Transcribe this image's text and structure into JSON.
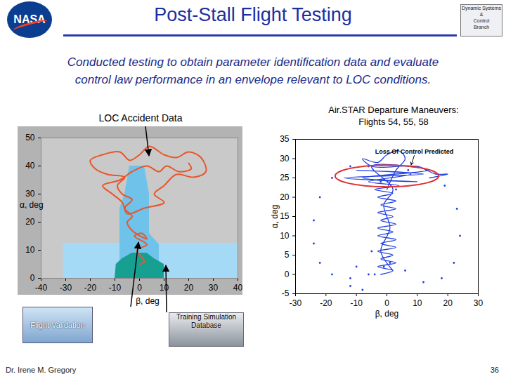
{
  "slide": {
    "title": "Post-Stall Flight Testing",
    "subtitle": "Conducted testing to obtain parameter identification data and evaluate\ncontrol law performance  in an envelope relevant to LOC conditions.",
    "logo_left": "NASA",
    "logo_right": [
      "Dynamic Systems",
      "&",
      "Control",
      "Branch"
    ],
    "images": [
      "Flight Validation",
      "Training Simulation Database"
    ],
    "footer": "Dr. Irene M. Gregory",
    "page": "36"
  },
  "chart_data": [
    {
      "type": "line",
      "title": "LOC Accident Data",
      "xlabel": "β, deg",
      "ylabel": "α, deg",
      "xlim": [
        -40,
        40
      ],
      "ylim": [
        0,
        50
      ],
      "xticks": [
        -40,
        -30,
        -20,
        -10,
        0,
        10,
        20,
        30,
        40
      ],
      "yticks": [
        0,
        10,
        20,
        30,
        40,
        50
      ],
      "regions": [
        {
          "color": "#a4daf5",
          "alpha": [
            0,
            12.5
          ],
          "beta_min": [
            -31,
            -31
          ],
          "beta_max": [
            40,
            40
          ]
        },
        {
          "color": "#6fc3ea",
          "alpha": [
            0,
            12,
            16,
            25,
            30,
            35,
            40
          ],
          "beta_min": [
            -8,
            -8,
            -8,
            -8,
            -6,
            -5,
            -4
          ],
          "beta_max": [
            8,
            8,
            4,
            4,
            4,
            3,
            2
          ]
        },
        {
          "color": "#17a092",
          "alpha": [
            0,
            5,
            7,
            9
          ],
          "beta_min": [
            -10,
            -9.5,
            -7,
            -3
          ],
          "beta_max": [
            10,
            10,
            6,
            3
          ]
        }
      ],
      "series": [
        {
          "color": "#e8562a",
          "x": [
            0,
            2,
            -1,
            3,
            -2,
            1,
            3,
            -3,
            -5,
            -3,
            -6,
            -3,
            -7,
            -9,
            -6,
            -13,
            -18,
            -20,
            -15,
            -8,
            -4,
            0,
            4,
            10,
            15,
            20,
            25,
            27,
            22,
            15,
            10,
            6,
            10,
            2,
            -5,
            -7,
            -11,
            -15,
            -8,
            -3,
            3,
            8,
            11,
            16,
            21,
            20
          ],
          "values": [
            5,
            6,
            10,
            12,
            15,
            16,
            14,
            17,
            20,
            22,
            25,
            28,
            30,
            33,
            36,
            37,
            39,
            42,
            44,
            45,
            42,
            44,
            47,
            44,
            43,
            45,
            43,
            38,
            36,
            37,
            33,
            30,
            27,
            25,
            23,
            27,
            30,
            33,
            35,
            38,
            40,
            38,
            40,
            38,
            39,
            41
          ]
        }
      ]
    },
    {
      "type": "line",
      "title": "Air.STAR Departure Maneuvers:\nFlights 54, 55, 58",
      "xlabel": "β, deg",
      "ylabel": "α, deg",
      "xlim": [
        -30,
        30
      ],
      "ylim": [
        -5,
        35
      ],
      "xticks": [
        -30,
        -20,
        -10,
        0,
        10,
        20,
        30
      ],
      "yticks": [
        -5,
        0,
        5,
        10,
        15,
        20,
        25,
        30,
        35
      ],
      "ellipse": {
        "color": "#e03030",
        "center": [
          0,
          25.5
        ],
        "radii": [
          17,
          2.8
        ]
      },
      "annotation": {
        "text": "Loss Of Control Predicted",
        "x": 9,
        "y": 31.8,
        "arrow_from": [
          9,
          30.8
        ],
        "arrow_to": [
          8,
          28.4
        ]
      },
      "series": [
        {
          "color": "#1f3fe0",
          "line_style": "solid",
          "marker": "none",
          "x": [
            -2,
            2,
            -3,
            3,
            -2,
            2,
            -3,
            3,
            -2,
            3,
            -3,
            2,
            -3,
            3,
            -2,
            2,
            -3,
            3,
            -2,
            3,
            -3,
            2,
            -4,
            4,
            -6,
            8,
            -10,
            12,
            -14,
            10,
            -8,
            14,
            -5,
            2,
            -1,
            1,
            -2,
            2
          ],
          "values": [
            0,
            1,
            2,
            3,
            4,
            5,
            6,
            7,
            8,
            9,
            10,
            11,
            12,
            13,
            14,
            15,
            16,
            17,
            18,
            19,
            20,
            21,
            22,
            23,
            24,
            26,
            27,
            26,
            25,
            24,
            25,
            27,
            28,
            22,
            18,
            12,
            6,
            1
          ]
        },
        {
          "color": "#1f3fe0",
          "line_style": "none",
          "marker": "dot",
          "x": [
            -1,
            -6,
            -12,
            -18,
            -22,
            -24,
            -24,
            -22,
            -18,
            -12,
            -6,
            -2
          ],
          "values": [
            2,
            0,
            -1,
            0,
            3,
            8,
            14,
            20,
            25,
            28,
            28,
            24
          ]
        },
        {
          "color": "#1f3fe0",
          "line_style": "none",
          "marker": "dot",
          "x": [
            1,
            6,
            12,
            18,
            22,
            24,
            23,
            19,
            13,
            7,
            3
          ],
          "values": [
            3,
            1,
            -2,
            -1,
            3,
            10,
            17,
            23,
            27,
            27,
            22
          ]
        },
        {
          "color": "#1f3fe0",
          "line_style": "solid",
          "marker": "none",
          "x": [
            0,
            3,
            6,
            4,
            0,
            -3,
            -8,
            -5,
            10,
            16,
            20,
            14
          ],
          "values": [
            22,
            27,
            30,
            32,
            31,
            29,
            30,
            28,
            28,
            26,
            26,
            25
          ]
        },
        {
          "color": "#1f3fe0",
          "line_style": "none",
          "marker": "dot",
          "x": [
            -5,
            -10,
            -12,
            -8,
            -4
          ],
          "values": [
            6,
            2,
            -3,
            -4,
            0
          ]
        }
      ]
    }
  ]
}
